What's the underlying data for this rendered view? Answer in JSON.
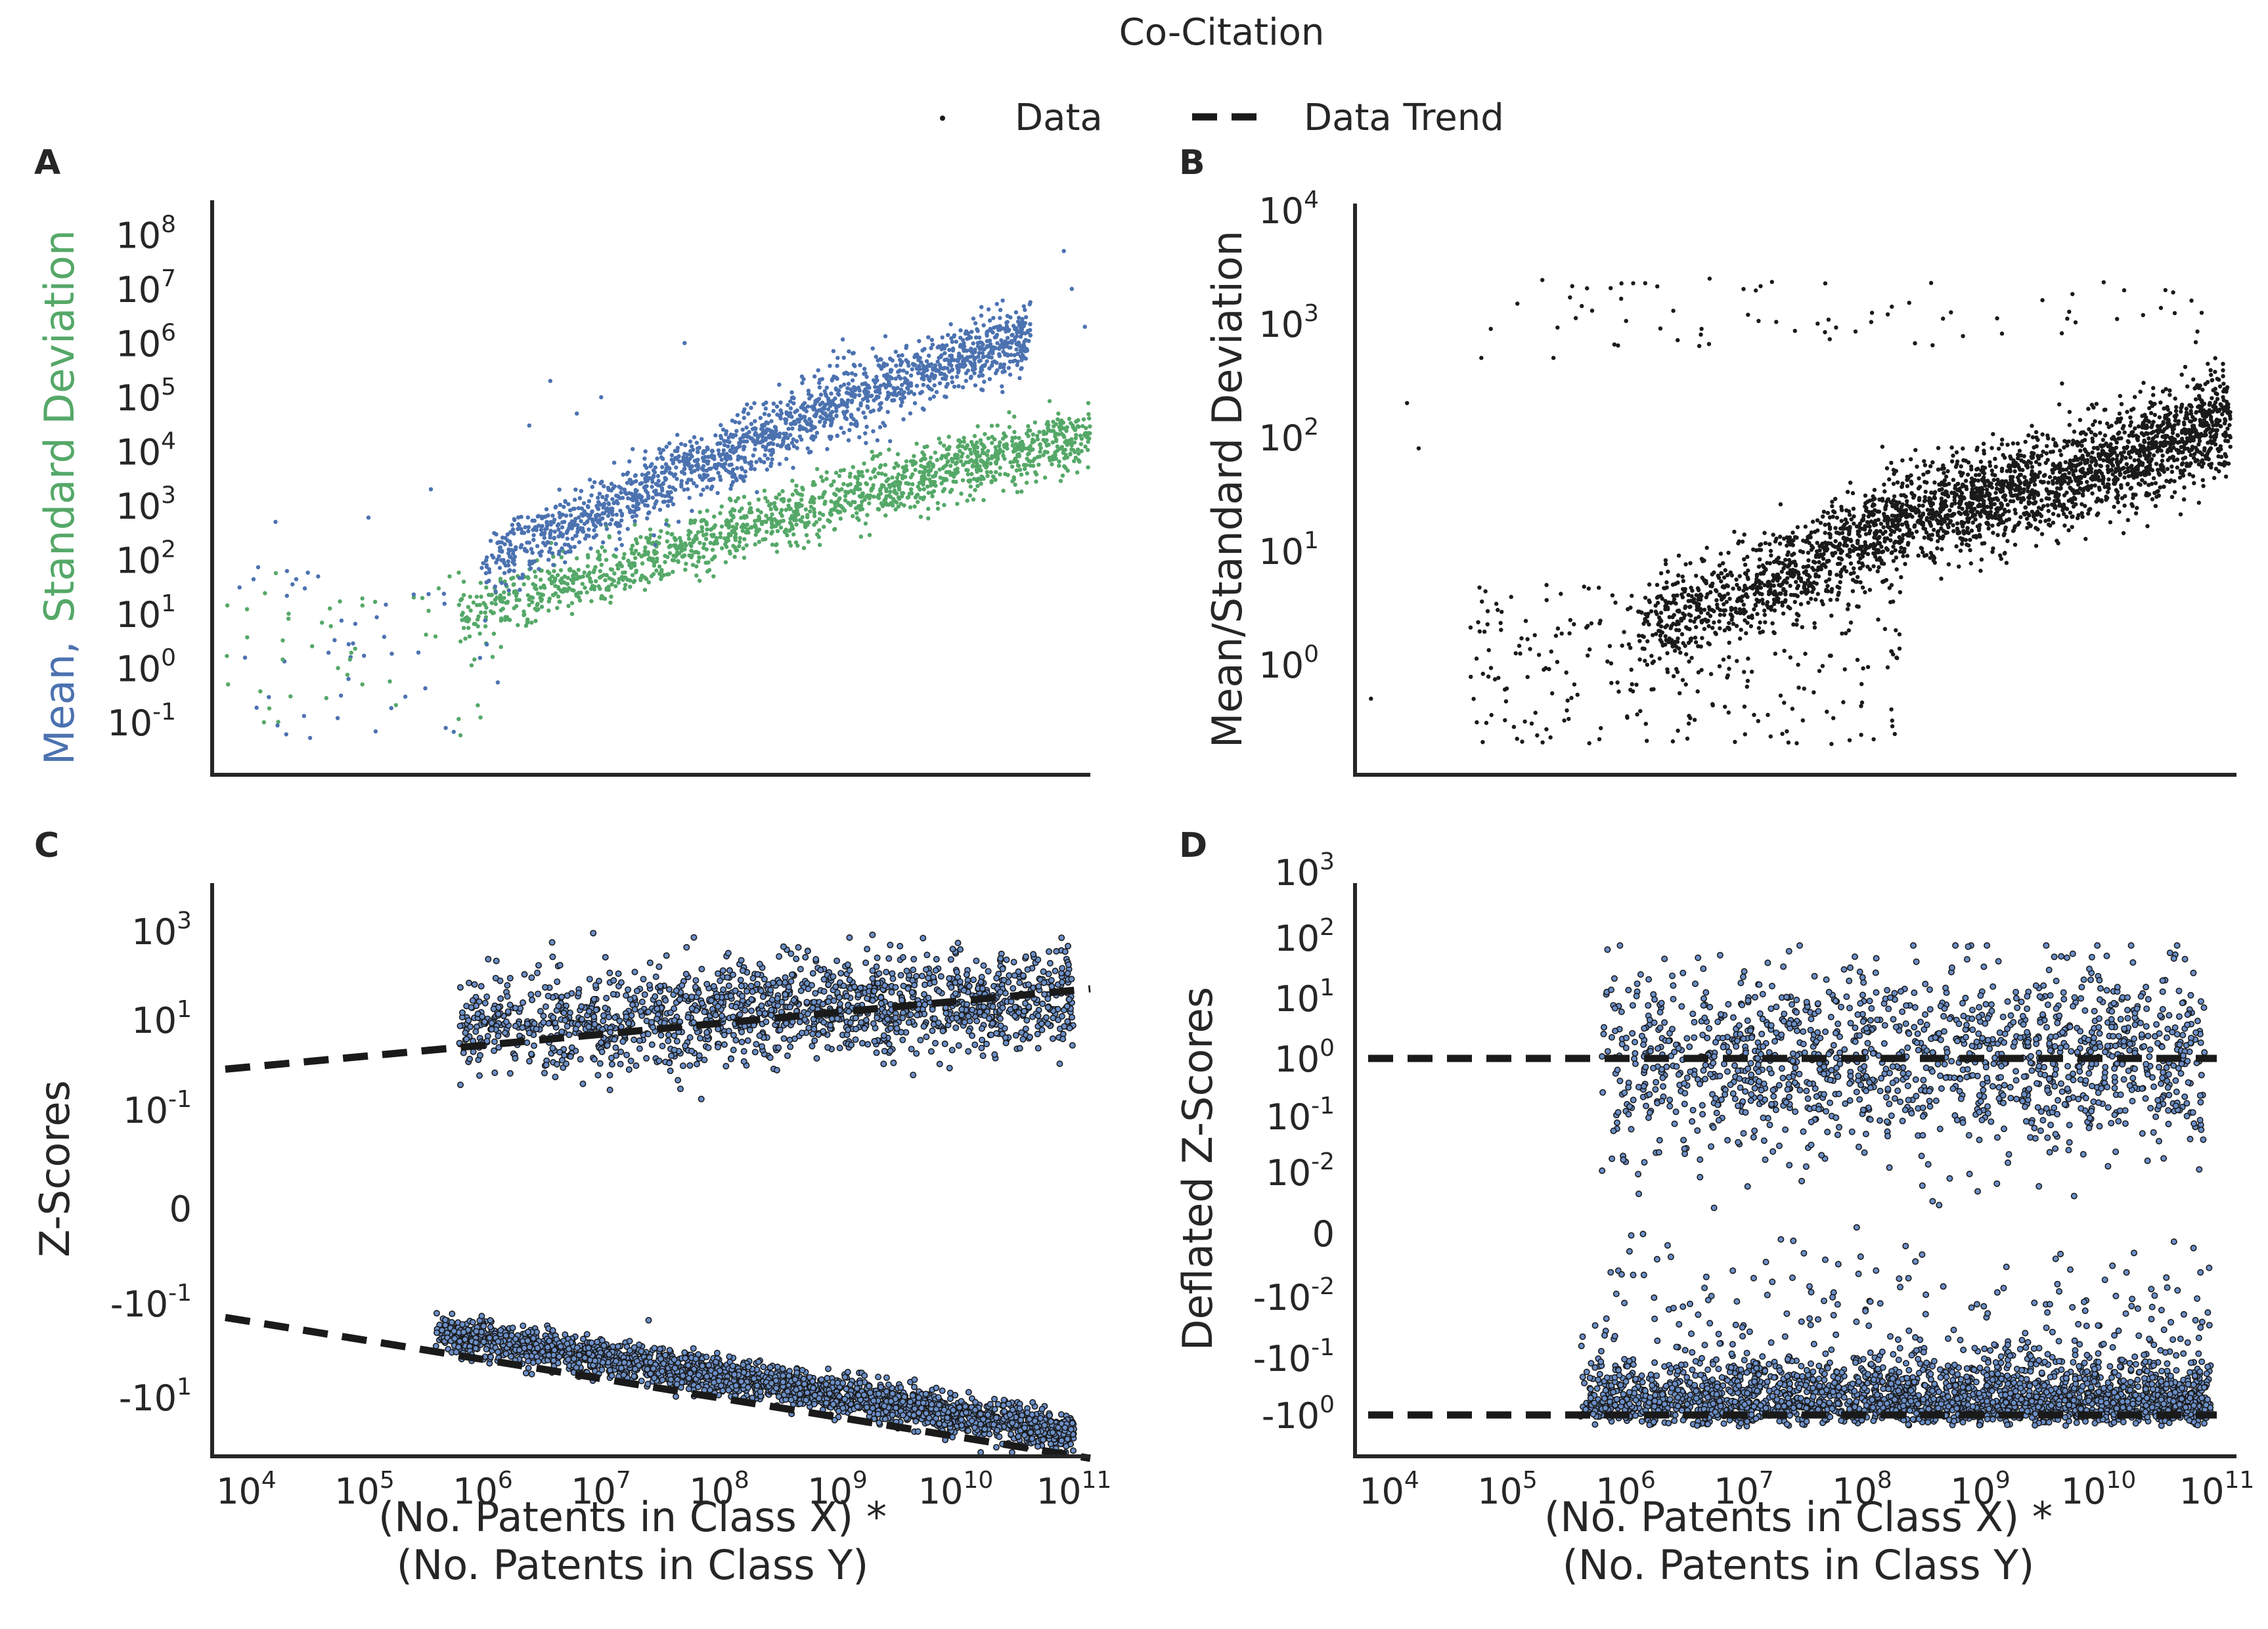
{
  "figure": {
    "title": "Co-Citation",
    "legend": [
      {
        "label": "Data",
        "marker": "dot"
      },
      {
        "label": "Data Trend",
        "marker": "dashed-line"
      }
    ]
  },
  "colors": {
    "mean": "#4c72b0",
    "std": "#55a868",
    "data": "#1a1a1a",
    "zscore_face": "#6b8fc9",
    "zscore_edge": "#1a1a1a",
    "trend": "#1a1a1a"
  },
  "panels": {
    "A": {
      "letter": "A",
      "ylabel_part1": "Mean,",
      "ylabel_part2": "Standard Deviation"
    },
    "B": {
      "letter": "B",
      "ylabel": "Mean/Standard Deviation"
    },
    "C": {
      "letter": "C",
      "ylabel": "Z-Scores",
      "xlabel_line1": "(No. Patents in Class X) *",
      "xlabel_line2": "(No. Patents in Class Y)"
    },
    "D": {
      "letter": "D",
      "ylabel": "Deflated Z-Scores",
      "xlabel_line1": "(No. Patents in Class X) *",
      "xlabel_line2": "(No. Patents in Class Y)"
    }
  },
  "chart_data": [
    {
      "panel": "A",
      "type": "scatter",
      "xscale": "log",
      "yscale": "log",
      "xlim": [
        5000,
        100000000000
      ],
      "ylim": [
        0.01,
        200000000
      ],
      "yticks": [
        {
          "base": "10",
          "exp": "-1"
        },
        {
          "base": "10",
          "exp": "0"
        },
        {
          "base": "10",
          "exp": "1"
        },
        {
          "base": "10",
          "exp": "2"
        },
        {
          "base": "10",
          "exp": "3"
        },
        {
          "base": "10",
          "exp": "4"
        },
        {
          "base": "10",
          "exp": "5"
        },
        {
          "base": "10",
          "exp": "6"
        },
        {
          "base": "10",
          "exp": "7"
        },
        {
          "base": "10",
          "exp": "8"
        }
      ],
      "series": [
        {
          "name": "Mean",
          "trend": {
            "x": [
              1000000,
              10000000,
              100000000,
              1000000000,
              10000000000,
              30000000000
            ],
            "y": [
              100,
              1000,
              10000,
              100000,
              600000,
              1200000
            ]
          },
          "outliers": [
            [
              15000,
              500
            ],
            [
              90000,
              600
            ],
            [
              300000,
              2000
            ],
            [
              3000000,
              200000
            ],
            [
              5000000,
              50000
            ],
            [
              8000000,
              100000
            ],
            [
              2000000,
              30000
            ],
            [
              40000000,
              1000000
            ],
            [
              60000000000,
              50000000
            ],
            [
              90000000000,
              2000000
            ],
            [
              70000000000,
              10000000
            ]
          ]
        },
        {
          "name": "Standard Deviation",
          "trend": {
            "x": [
              600000,
              10000000,
              100000000,
              1000000000,
              10000000000,
              100000000000
            ],
            "y": [
              10,
              60,
              300,
              1500,
              6000,
              20000
            ]
          },
          "outliers": [
            [
              6000,
              0.5
            ],
            [
              12000,
              0.1
            ],
            [
              20000,
              0.3
            ],
            [
              50000,
              1
            ],
            [
              80000,
              0.5
            ]
          ]
        }
      ]
    },
    {
      "panel": "B",
      "type": "scatter",
      "xscale": "log",
      "yscale": "log",
      "xlim": [
        5000,
        100000000000
      ],
      "ylim": [
        0.1,
        10000
      ],
      "yticks": [
        {
          "base": "10",
          "exp": "0"
        },
        {
          "base": "10",
          "exp": "1"
        },
        {
          "base": "10",
          "exp": "2"
        },
        {
          "base": "10",
          "exp": "3"
        },
        {
          "base": "10",
          "exp": "4"
        }
      ],
      "series": [
        {
          "name": "Mean/Std",
          "trend": {
            "x": [
              1000000,
              10000000,
              100000000,
              1000000000,
              10000000000,
              90000000000
            ],
            "y": [
              2,
              5,
              15,
              30,
              60,
              150
            ]
          },
          "outliers": [
            [
              6000,
              0.5
            ],
            [
              12000,
              200
            ],
            [
              15000,
              80
            ],
            [
              50000,
              500
            ],
            [
              60000,
              900
            ],
            [
              100000,
              1500
            ],
            [
              200000,
              500
            ],
            [
              2000000,
              1300
            ]
          ]
        }
      ]
    },
    {
      "panel": "C",
      "type": "scatter",
      "xscale": "log",
      "yscale": "symlog",
      "xlim": [
        5000,
        100000000000
      ],
      "xticks": [
        {
          "base": "10",
          "exp": "4"
        },
        {
          "base": "10",
          "exp": "5"
        },
        {
          "base": "10",
          "exp": "6"
        },
        {
          "base": "10",
          "exp": "7"
        },
        {
          "base": "10",
          "exp": "8"
        },
        {
          "base": "10",
          "exp": "9"
        },
        {
          "base": "10",
          "exp": "10"
        },
        {
          "base": "10",
          "exp": "11"
        }
      ],
      "yticks": [
        {
          "base": "10",
          "exp": "3"
        },
        {
          "base": "10",
          "exp": "1"
        },
        {
          "base": "10",
          "exp": "-1"
        },
        {
          "base": "0",
          "exp": ""
        },
        {
          "base": "-10",
          "exp": "-1"
        },
        {
          "base": "-10",
          "exp": "1"
        }
      ],
      "trend_lines": [
        {
          "x": [
            5000,
            100000000000
          ],
          "y": [
            0.8,
            50
          ]
        },
        {
          "x": [
            5000,
            100000000000
          ],
          "y": [
            -0.2,
            -200
          ]
        }
      ]
    },
    {
      "panel": "D",
      "type": "scatter",
      "xscale": "log",
      "yscale": "symlog",
      "xlim": [
        5000,
        100000000000
      ],
      "xticks": [
        {
          "base": "10",
          "exp": "4"
        },
        {
          "base": "10",
          "exp": "5"
        },
        {
          "base": "10",
          "exp": "6"
        },
        {
          "base": "10",
          "exp": "7"
        },
        {
          "base": "10",
          "exp": "8"
        },
        {
          "base": "10",
          "exp": "9"
        },
        {
          "base": "10",
          "exp": "10"
        },
        {
          "base": "10",
          "exp": "11"
        }
      ],
      "yticks": [
        {
          "base": "10",
          "exp": "3"
        },
        {
          "base": "10",
          "exp": "2"
        },
        {
          "base": "10",
          "exp": "1"
        },
        {
          "base": "10",
          "exp": "0"
        },
        {
          "base": "10",
          "exp": "-1"
        },
        {
          "base": "10",
          "exp": "-2"
        },
        {
          "base": "0",
          "exp": ""
        },
        {
          "base": "-10",
          "exp": "-2"
        },
        {
          "base": "-10",
          "exp": "-1"
        },
        {
          "base": "-10",
          "exp": "0"
        }
      ],
      "trend_lines": [
        {
          "x": [
            5000,
            100000000000
          ],
          "y": [
            1,
            1
          ]
        },
        {
          "x": [
            5000,
            100000000000
          ],
          "y": [
            -1,
            -1
          ]
        }
      ]
    }
  ]
}
